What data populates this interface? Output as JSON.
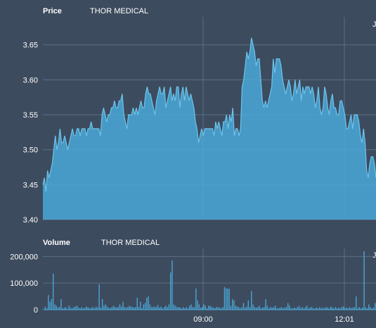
{
  "chart_data": [
    {
      "type": "area",
      "title": "Price",
      "symbol": "THOR MEDICAL",
      "ylim": [
        3.4,
        3.69
      ],
      "yticks": [
        "3.40",
        "3.45",
        "3.50",
        "3.55",
        "3.60",
        "3.65"
      ],
      "grid": true,
      "color": "#4aa8d8",
      "values": [
        3.45,
        3.46,
        3.44,
        3.47,
        3.46,
        3.47,
        3.48,
        3.5,
        3.52,
        3.5,
        3.51,
        3.53,
        3.51,
        3.51,
        3.52,
        3.51,
        3.5,
        3.51,
        3.52,
        3.53,
        3.52,
        3.52,
        3.53,
        3.53,
        3.52,
        3.53,
        3.53,
        3.53,
        3.52,
        3.53,
        3.53,
        3.54,
        3.53,
        3.53,
        3.53,
        3.53,
        3.53,
        3.52,
        3.55,
        3.56,
        3.55,
        3.54,
        3.55,
        3.55,
        3.56,
        3.56,
        3.57,
        3.56,
        3.56,
        3.57,
        3.57,
        3.58,
        3.55,
        3.54,
        3.53,
        3.55,
        3.55,
        3.55,
        3.56,
        3.55,
        3.56,
        3.55,
        3.56,
        3.57,
        3.56,
        3.56,
        3.58,
        3.59,
        3.58,
        3.58,
        3.57,
        3.56,
        3.55,
        3.57,
        3.58,
        3.59,
        3.58,
        3.58,
        3.59,
        3.56,
        3.57,
        3.58,
        3.59,
        3.57,
        3.58,
        3.57,
        3.59,
        3.59,
        3.56,
        3.58,
        3.59,
        3.57,
        3.59,
        3.58,
        3.57,
        3.58,
        3.57,
        3.56,
        3.54,
        3.53,
        3.51,
        3.52,
        3.53,
        3.52,
        3.53,
        3.53,
        3.53,
        3.53,
        3.53,
        3.53,
        3.52,
        3.54,
        3.53,
        3.54,
        3.53,
        3.52,
        3.54,
        3.54,
        3.55,
        3.53,
        3.55,
        3.54,
        3.56,
        3.52,
        3.53,
        3.53,
        3.52,
        3.53,
        3.59,
        3.6,
        3.62,
        3.64,
        3.63,
        3.64,
        3.66,
        3.65,
        3.64,
        3.62,
        3.63,
        3.63,
        3.6,
        3.57,
        3.56,
        3.57,
        3.56,
        3.57,
        3.58,
        3.59,
        3.63,
        3.61,
        3.63,
        3.63,
        3.63,
        3.62,
        3.6,
        3.59,
        3.58,
        3.59,
        3.6,
        3.59,
        3.57,
        3.58,
        3.6,
        3.58,
        3.59,
        3.6,
        3.57,
        3.59,
        3.58,
        3.59,
        3.59,
        3.59,
        3.58,
        3.59,
        3.58,
        3.56,
        3.57,
        3.59,
        3.56,
        3.55,
        3.56,
        3.59,
        3.58,
        3.56,
        3.55,
        3.57,
        3.58,
        3.56,
        3.56,
        3.55,
        3.55,
        3.57,
        3.57,
        3.56,
        3.55,
        3.53,
        3.53,
        3.54,
        3.55,
        3.53,
        3.55,
        3.55,
        3.55,
        3.54,
        3.52,
        3.51,
        3.53,
        3.51,
        3.47,
        3.46,
        3.48,
        3.49,
        3.49,
        3.48,
        3.46
      ]
    },
    {
      "type": "bar",
      "title": "Volume",
      "symbol": "THOR MEDICAL",
      "ylim": [
        0,
        230000
      ],
      "yticks": [
        "0",
        "100,000",
        "200,000"
      ],
      "xticks": [
        "09:00",
        "12:01"
      ],
      "grid": true,
      "color": "#4aa8d8",
      "values": [
        0,
        12000,
        5000,
        55000,
        30000,
        40000,
        135000,
        20000,
        15000,
        8000,
        10000,
        40000,
        5000,
        8000,
        10000,
        3000,
        15000,
        7000,
        5000,
        10000,
        12000,
        15000,
        8000,
        5000,
        10000,
        5000,
        8000,
        12000,
        9000,
        5000,
        7000,
        10000,
        5000,
        12000,
        8000,
        95000,
        8000,
        40000,
        15000,
        20000,
        12000,
        8000,
        5000,
        10000,
        15000,
        10000,
        8000,
        10000,
        20000,
        12000,
        30000,
        10000,
        8000,
        10000,
        15000,
        12000,
        10000,
        8000,
        10000,
        45000,
        10000,
        30000,
        5000,
        20000,
        25000,
        45000,
        50000,
        20000,
        10000,
        10000,
        12000,
        10000,
        18000,
        8000,
        12000,
        5000,
        10000,
        15000,
        10000,
        20000,
        140000,
        185000,
        20000,
        15000,
        10000,
        10000,
        8000,
        5000,
        10000,
        5000,
        10000,
        5000,
        15000,
        20000,
        10000,
        10000,
        80000,
        35000,
        20000,
        8000,
        10000,
        20000,
        15000,
        5000,
        15000,
        15000,
        10000,
        8000,
        5000,
        10000,
        10000,
        8000,
        5000,
        10000,
        85000,
        80000,
        80000,
        78000,
        15000,
        40000,
        35000,
        15000,
        12000,
        10000,
        5000,
        10000,
        25000,
        8000,
        12000,
        35000,
        10000,
        70000,
        20000,
        10000,
        8000,
        10000,
        15000,
        5000,
        8000,
        10000,
        40000,
        15000,
        5000,
        10000,
        8000,
        10000,
        15000,
        5000,
        5000,
        8000,
        10000,
        5000,
        8000,
        10000,
        25000,
        15000,
        5000,
        5000,
        8000,
        5000,
        10000,
        15000,
        5000,
        10000,
        5000,
        10000,
        15000,
        5000,
        8000,
        10000,
        5000,
        5000,
        8000,
        5000,
        10000,
        5000,
        8000,
        5000,
        10000,
        8000,
        5000,
        12000,
        8000,
        5000,
        10000,
        5000,
        8000,
        5000,
        10000,
        12000,
        5000,
        8000,
        5000,
        10000,
        5000,
        8000,
        10000,
        50000,
        5000,
        10000,
        5000,
        8000,
        220000,
        10000,
        5000,
        20000,
        10000,
        5000,
        8000,
        25000
      ]
    }
  ]
}
